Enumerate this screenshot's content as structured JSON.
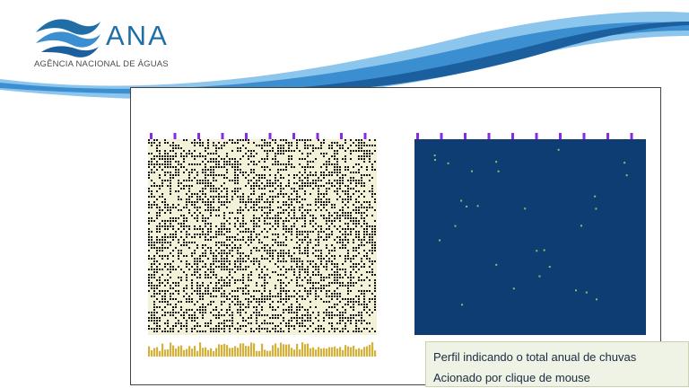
{
  "header": {
    "logo_text": "ANA",
    "logo_subtitle": "AGÊNCIA NACIONAL DE ÁGUAS",
    "wave_colors": [
      "#1b5f9e",
      "#3b8fd0",
      "#8cc6ec"
    ]
  },
  "figure": {
    "left_matrix": {
      "bg_color": "#f3f1d8",
      "dot_color": "#111111",
      "tick_color": "#8a2be2"
    },
    "side_profile": {
      "color": "#2f72b6",
      "accent_color": "#8a2be2"
    },
    "bottom_profile": {
      "color": "#d4b13a"
    },
    "right_matrix": {
      "bg_color": "#0d3d73",
      "speck_color": "#7ac96a",
      "tick_color": "#8a2be2"
    }
  },
  "caption": {
    "line1": "Perfil indicando o total anual de chuvas",
    "line2": "Acionado por clique de mouse"
  }
}
